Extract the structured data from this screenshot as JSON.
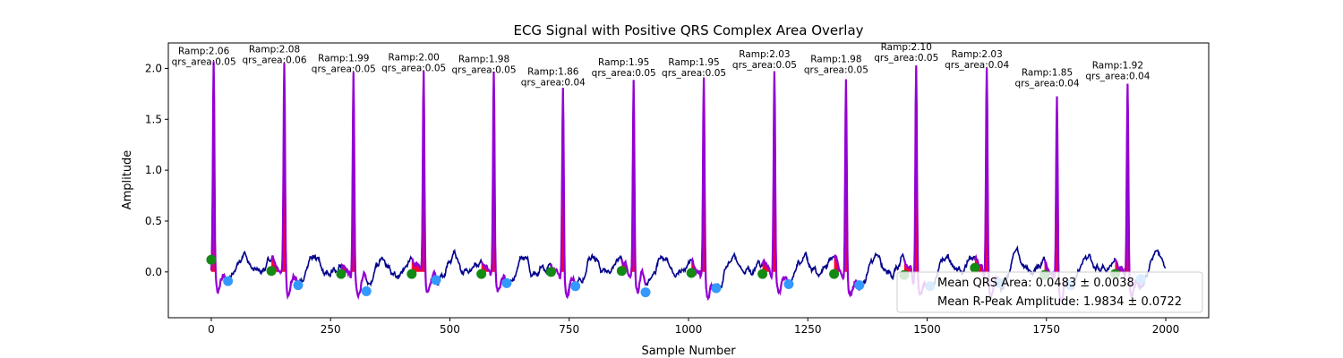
{
  "chart_data": {
    "type": "line",
    "title": "ECG Signal with Positive QRS Complex Area Overlay",
    "xlabel": "Sample Number",
    "ylabel": "Amplitude",
    "xlim": [
      -90,
      2090
    ],
    "ylim": [
      -0.45,
      2.25
    ],
    "xticks": [
      0,
      250,
      500,
      750,
      1000,
      1250,
      1500,
      1750,
      2000
    ],
    "yticks": [
      0.0,
      0.5,
      1.0,
      1.5,
      2.0
    ],
    "grid": false,
    "colors": {
      "ecg_line": "#00008b",
      "qrs_segment": "#9400d3",
      "qrs_fill": "#ff0033",
      "onset_marker": "#138a13",
      "offset_marker": "#3399ff"
    },
    "beats": [
      {
        "r_x": 5,
        "r_amp": 2.06,
        "qrs_area": 0.05,
        "ramp_label": "Ramp:2.06",
        "area_label": "qrs_area:0.05",
        "onset_x": 0,
        "onset_y": 0.12,
        "offset_x": 35,
        "offset_y": -0.09
      },
      {
        "r_x": 153,
        "r_amp": 2.08,
        "qrs_area": 0.06,
        "ramp_label": "Ramp:2.08",
        "area_label": "qrs_area:0.06",
        "onset_x": 126,
        "onset_y": 0.01,
        "offset_x": 182,
        "offset_y": -0.13
      },
      {
        "r_x": 298,
        "r_amp": 1.99,
        "qrs_area": 0.05,
        "ramp_label": "Ramp:1.99",
        "area_label": "qrs_area:0.05",
        "onset_x": 272,
        "onset_y": -0.02,
        "offset_x": 325,
        "offset_y": -0.19
      },
      {
        "r_x": 445,
        "r_amp": 2.0,
        "qrs_area": 0.05,
        "ramp_label": "Ramp:2.00",
        "area_label": "qrs_area:0.05",
        "onset_x": 420,
        "onset_y": -0.02,
        "offset_x": 471,
        "offset_y": -0.08
      },
      {
        "r_x": 592,
        "r_amp": 1.98,
        "qrs_area": 0.05,
        "ramp_label": "Ramp:1.98",
        "area_label": "qrs_area:0.05",
        "onset_x": 566,
        "onset_y": -0.02,
        "offset_x": 619,
        "offset_y": -0.11
      },
      {
        "r_x": 737,
        "r_amp": 1.86,
        "qrs_area": 0.04,
        "ramp_label": "Ramp:1.86",
        "area_label": "qrs_area:0.04",
        "onset_x": 712,
        "onset_y": 0.0,
        "offset_x": 763,
        "offset_y": -0.14
      },
      {
        "r_x": 885,
        "r_amp": 1.95,
        "qrs_area": 0.05,
        "ramp_label": "Ramp:1.95",
        "area_label": "qrs_area:0.05",
        "onset_x": 860,
        "onset_y": 0.01,
        "offset_x": 910,
        "offset_y": -0.2
      },
      {
        "r_x": 1032,
        "r_amp": 1.95,
        "qrs_area": 0.05,
        "ramp_label": "Ramp:1.95",
        "area_label": "qrs_area:0.05",
        "onset_x": 1006,
        "onset_y": -0.01,
        "offset_x": 1058,
        "offset_y": -0.16
      },
      {
        "r_x": 1180,
        "r_amp": 2.03,
        "qrs_area": 0.05,
        "ramp_label": "Ramp:2.03",
        "area_label": "qrs_area:0.05",
        "onset_x": 1155,
        "onset_y": -0.02,
        "offset_x": 1210,
        "offset_y": -0.12
      },
      {
        "r_x": 1330,
        "r_amp": 1.98,
        "qrs_area": 0.05,
        "ramp_label": "Ramp:1.98",
        "area_label": "qrs_area:0.05",
        "onset_x": 1305,
        "onset_y": -0.02,
        "offset_x": 1358,
        "offset_y": -0.13
      },
      {
        "r_x": 1477,
        "r_amp": 2.1,
        "qrs_area": 0.05,
        "ramp_label": "Ramp:2.10",
        "area_label": "qrs_area:0.05",
        "onset_x": 1452,
        "onset_y": -0.03,
        "offset_x": 1506,
        "offset_y": -0.14
      },
      {
        "r_x": 1625,
        "r_amp": 2.03,
        "qrs_area": 0.04,
        "ramp_label": "Ramp:2.03",
        "area_label": "qrs_area:0.04",
        "onset_x": 1600,
        "onset_y": 0.04,
        "offset_x": 1652,
        "offset_y": -0.11
      },
      {
        "r_x": 1772,
        "r_amp": 1.85,
        "qrs_area": 0.04,
        "ramp_label": "Ramp:1.85",
        "area_label": "qrs_area:0.04",
        "onset_x": 1746,
        "onset_y": -0.03,
        "offset_x": 1800,
        "offset_y": -0.13
      },
      {
        "r_x": 1920,
        "r_amp": 1.92,
        "qrs_area": 0.04,
        "ramp_label": "Ramp:1.92",
        "area_label": "qrs_area:0.04",
        "onset_x": 1894,
        "onset_y": -0.02,
        "offset_x": 1948,
        "offset_y": -0.07
      }
    ],
    "legend": {
      "placement": "lower-right",
      "entries": [
        "Mean QRS Area: 0.0483 ± 0.0038",
        "Mean R-Peak Amplitude: 1.9834 ± 0.0722"
      ]
    }
  }
}
